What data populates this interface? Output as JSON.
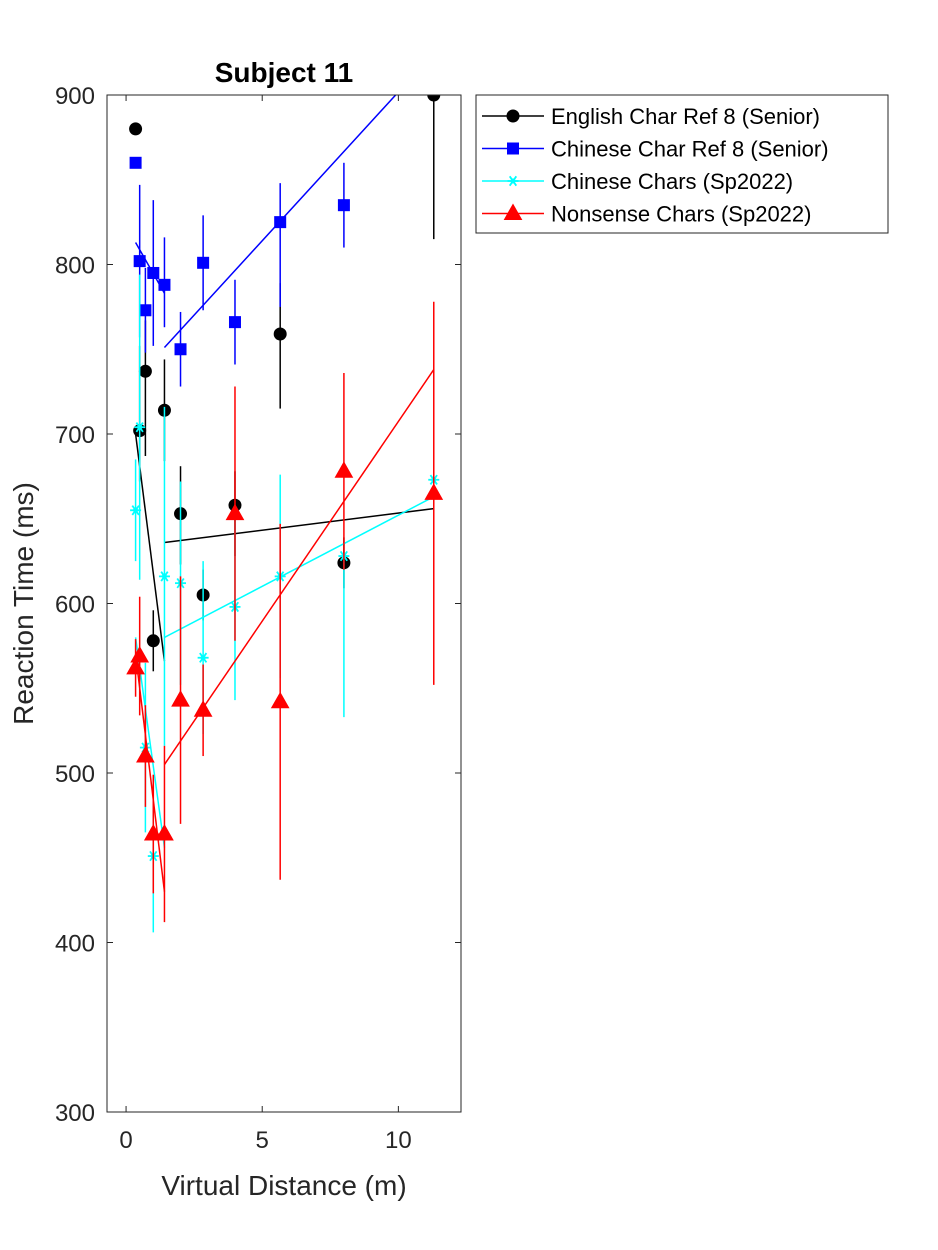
{
  "chart_data": {
    "type": "scatter",
    "title": "Subject 11",
    "xlabel": "Virtual Distance (m)",
    "ylabel": "Reaction Time (ms)",
    "xlim": [
      -0.7,
      12.3
    ],
    "ylim": [
      300,
      900
    ],
    "xticks": [
      0,
      5,
      10
    ],
    "xtick_labels": [
      "0",
      "5",
      "10"
    ],
    "yticks": [
      300,
      400,
      500,
      600,
      700,
      800,
      900
    ],
    "ytick_labels": [
      "300",
      "400",
      "500",
      "600",
      "700",
      "800",
      "900"
    ],
    "grid": false,
    "legend_position": "outside-top-right",
    "series": [
      {
        "name": "English Char Ref 8 (Senior)",
        "color": "#000000",
        "marker": "circle",
        "x": [
          0.35,
          0.5,
          0.71,
          1.0,
          1.41,
          2.0,
          2.83,
          4.0,
          5.66,
          8.0,
          11.3
        ],
        "y": [
          880,
          702,
          737,
          578,
          714,
          653,
          605,
          658,
          759,
          624,
          900
        ],
        "err_low": [
          null,
          30,
          50,
          18,
          30,
          30,
          15,
          30,
          44,
          15,
          85
        ],
        "err_high": [
          null,
          50,
          30,
          18,
          30,
          28,
          15,
          20,
          30,
          15,
          0
        ],
        "fit_lines": [
          {
            "x": [
              0.35,
              1.41
            ],
            "y": [
              700,
              566
            ]
          },
          {
            "x": [
              1.41,
              11.3
            ],
            "y": [
              636,
              656
            ]
          }
        ]
      },
      {
        "name": "Chinese Char Ref 8 (Senior)",
        "color": "#0000ff",
        "marker": "square",
        "x": [
          0.35,
          0.5,
          0.71,
          1.0,
          1.41,
          2.0,
          2.83,
          4.0,
          5.66,
          8.0
        ],
        "y": [
          860,
          802,
          773,
          795,
          788,
          750,
          801,
          766,
          825,
          835
        ],
        "err_low": [
          null,
          45,
          25,
          43,
          25,
          22,
          28,
          25,
          50,
          25
        ],
        "err_high": [
          null,
          45,
          25,
          43,
          28,
          22,
          28,
          25,
          23,
          25
        ],
        "fit_lines": [
          {
            "x": [
              0.35,
              1.41
            ],
            "y": [
              813,
              783
            ]
          },
          {
            "x": [
              1.41,
              9.9
            ],
            "y": [
              751,
              900
            ]
          }
        ]
      },
      {
        "name": "Chinese Chars (Sp2022)",
        "color": "#00ffff",
        "marker": "star",
        "x": [
          0.35,
          0.5,
          0.71,
          1.0,
          1.41,
          2.0,
          2.83,
          4.0,
          5.66,
          8.0,
          11.3
        ],
        "y": [
          655,
          704,
          515,
          451,
          616,
          612,
          568,
          598,
          616,
          628,
          673
        ],
        "err_low": [
          30,
          90,
          50,
          45,
          100,
          60,
          45,
          55,
          60,
          95,
          0
        ],
        "err_high": [
          30,
          90,
          50,
          45,
          100,
          60,
          57,
          55,
          60,
          0,
          0
        ],
        "fit_lines": [
          {
            "x": [
              0.35,
              1.41
            ],
            "y": [
              580,
              456
            ]
          },
          {
            "x": [
              1.41,
              11.3
            ],
            "y": [
              580,
              663
            ]
          }
        ]
      },
      {
        "name": "Nonsense Chars (Sp2022)",
        "color": "#ff0000",
        "marker": "triangle",
        "x": [
          0.35,
          0.5,
          0.71,
          1.0,
          1.41,
          2.0,
          2.83,
          4.0,
          5.66,
          8.0,
          11.3
        ],
        "y": [
          562,
          569,
          510,
          464,
          464,
          543,
          537,
          653,
          542,
          678,
          665
        ],
        "err_low": [
          17,
          35,
          30,
          35,
          52,
          73,
          27,
          75,
          105,
          58,
          113
        ],
        "err_high": [
          17,
          35,
          30,
          35,
          52,
          73,
          27,
          75,
          105,
          58,
          113
        ],
        "fit_lines": [
          {
            "x": [
              0.35,
              1.41
            ],
            "y": [
              570,
              430
            ]
          },
          {
            "x": [
              1.41,
              11.3
            ],
            "y": [
              505,
              738
            ]
          }
        ]
      }
    ]
  }
}
